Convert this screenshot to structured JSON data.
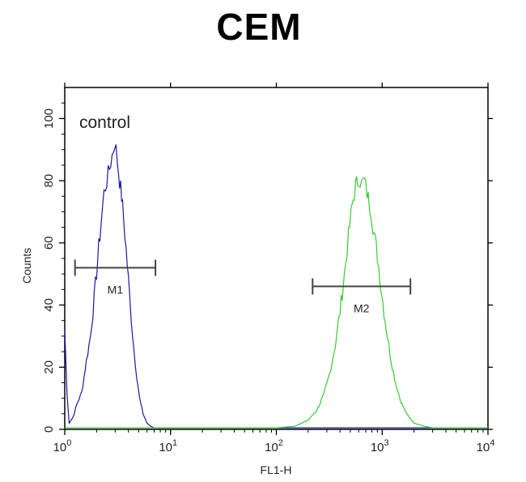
{
  "chart_data": {
    "type": "line",
    "title": "CEM",
    "xlabel": "FL1-H",
    "ylabel": "Counts",
    "x_scale": "log",
    "xlim": [
      1,
      10000
    ],
    "ylim": [
      0,
      110
    ],
    "x_ticks": [
      {
        "value": 1,
        "base": "10",
        "exp": "0"
      },
      {
        "value": 10,
        "base": "10",
        "exp": "1"
      },
      {
        "value": 100,
        "base": "10",
        "exp": "2"
      },
      {
        "value": 1000,
        "base": "10",
        "exp": "3"
      },
      {
        "value": 10000,
        "base": "10",
        "exp": "4"
      }
    ],
    "y_ticks": [
      {
        "value": 0,
        "label": "0"
      },
      {
        "value": 20,
        "label": "20"
      },
      {
        "value": 40,
        "label": "40"
      },
      {
        "value": 60,
        "label": "60"
      },
      {
        "value": 80,
        "label": "80"
      },
      {
        "value": 100,
        "label": "100"
      }
    ],
    "annotation": "control",
    "series": [
      {
        "color": "#1a1aa0",
        "x": [
          1.0,
          1.05,
          1.1,
          1.2,
          1.3,
          1.45,
          1.6,
          1.75,
          1.9,
          2.05,
          2.2,
          2.35,
          2.5,
          2.65,
          2.8,
          2.95,
          3.05,
          3.15,
          3.3,
          3.45,
          3.6,
          3.8,
          4.0,
          4.25,
          4.5,
          4.8,
          5.1,
          5.5,
          6.0,
          6.5,
          7.0,
          8.0,
          10,
          30,
          100,
          1000,
          10000
        ],
        "y": [
          32,
          12,
          2,
          4,
          8,
          12,
          22,
          30,
          42,
          55,
          66,
          76,
          80,
          84,
          88,
          92,
          90,
          86,
          80,
          75,
          68,
          58,
          48,
          36,
          26,
          17,
          10,
          5,
          2,
          1,
          0.5,
          0.5,
          0.5,
          0.5,
          0.5,
          0.5,
          0.5
        ]
      },
      {
        "color": "#33cc33",
        "x": [
          1,
          10,
          100,
          150,
          200,
          240,
          280,
          320,
          360,
          400,
          440,
          480,
          520,
          560,
          600,
          640,
          680,
          720,
          780,
          840,
          900,
          960,
          1040,
          1120,
          1220,
          1340,
          1500,
          1700,
          2000,
          2500,
          3000,
          10000
        ],
        "y": [
          0.5,
          0.5,
          0.5,
          1,
          3,
          6,
          11,
          18,
          27,
          38,
          50,
          62,
          72,
          78,
          81,
          79,
          80,
          76,
          71,
          63,
          56,
          48,
          38,
          30,
          22,
          15,
          9,
          5,
          2,
          1,
          0.5,
          0.5
        ]
      }
    ],
    "markers": [
      {
        "label": "M1",
        "x_start": 1.25,
        "x_end": 7.2,
        "y": 52
      },
      {
        "label": "M2",
        "x_start": 220,
        "x_end": 1850,
        "y": 46
      }
    ]
  }
}
